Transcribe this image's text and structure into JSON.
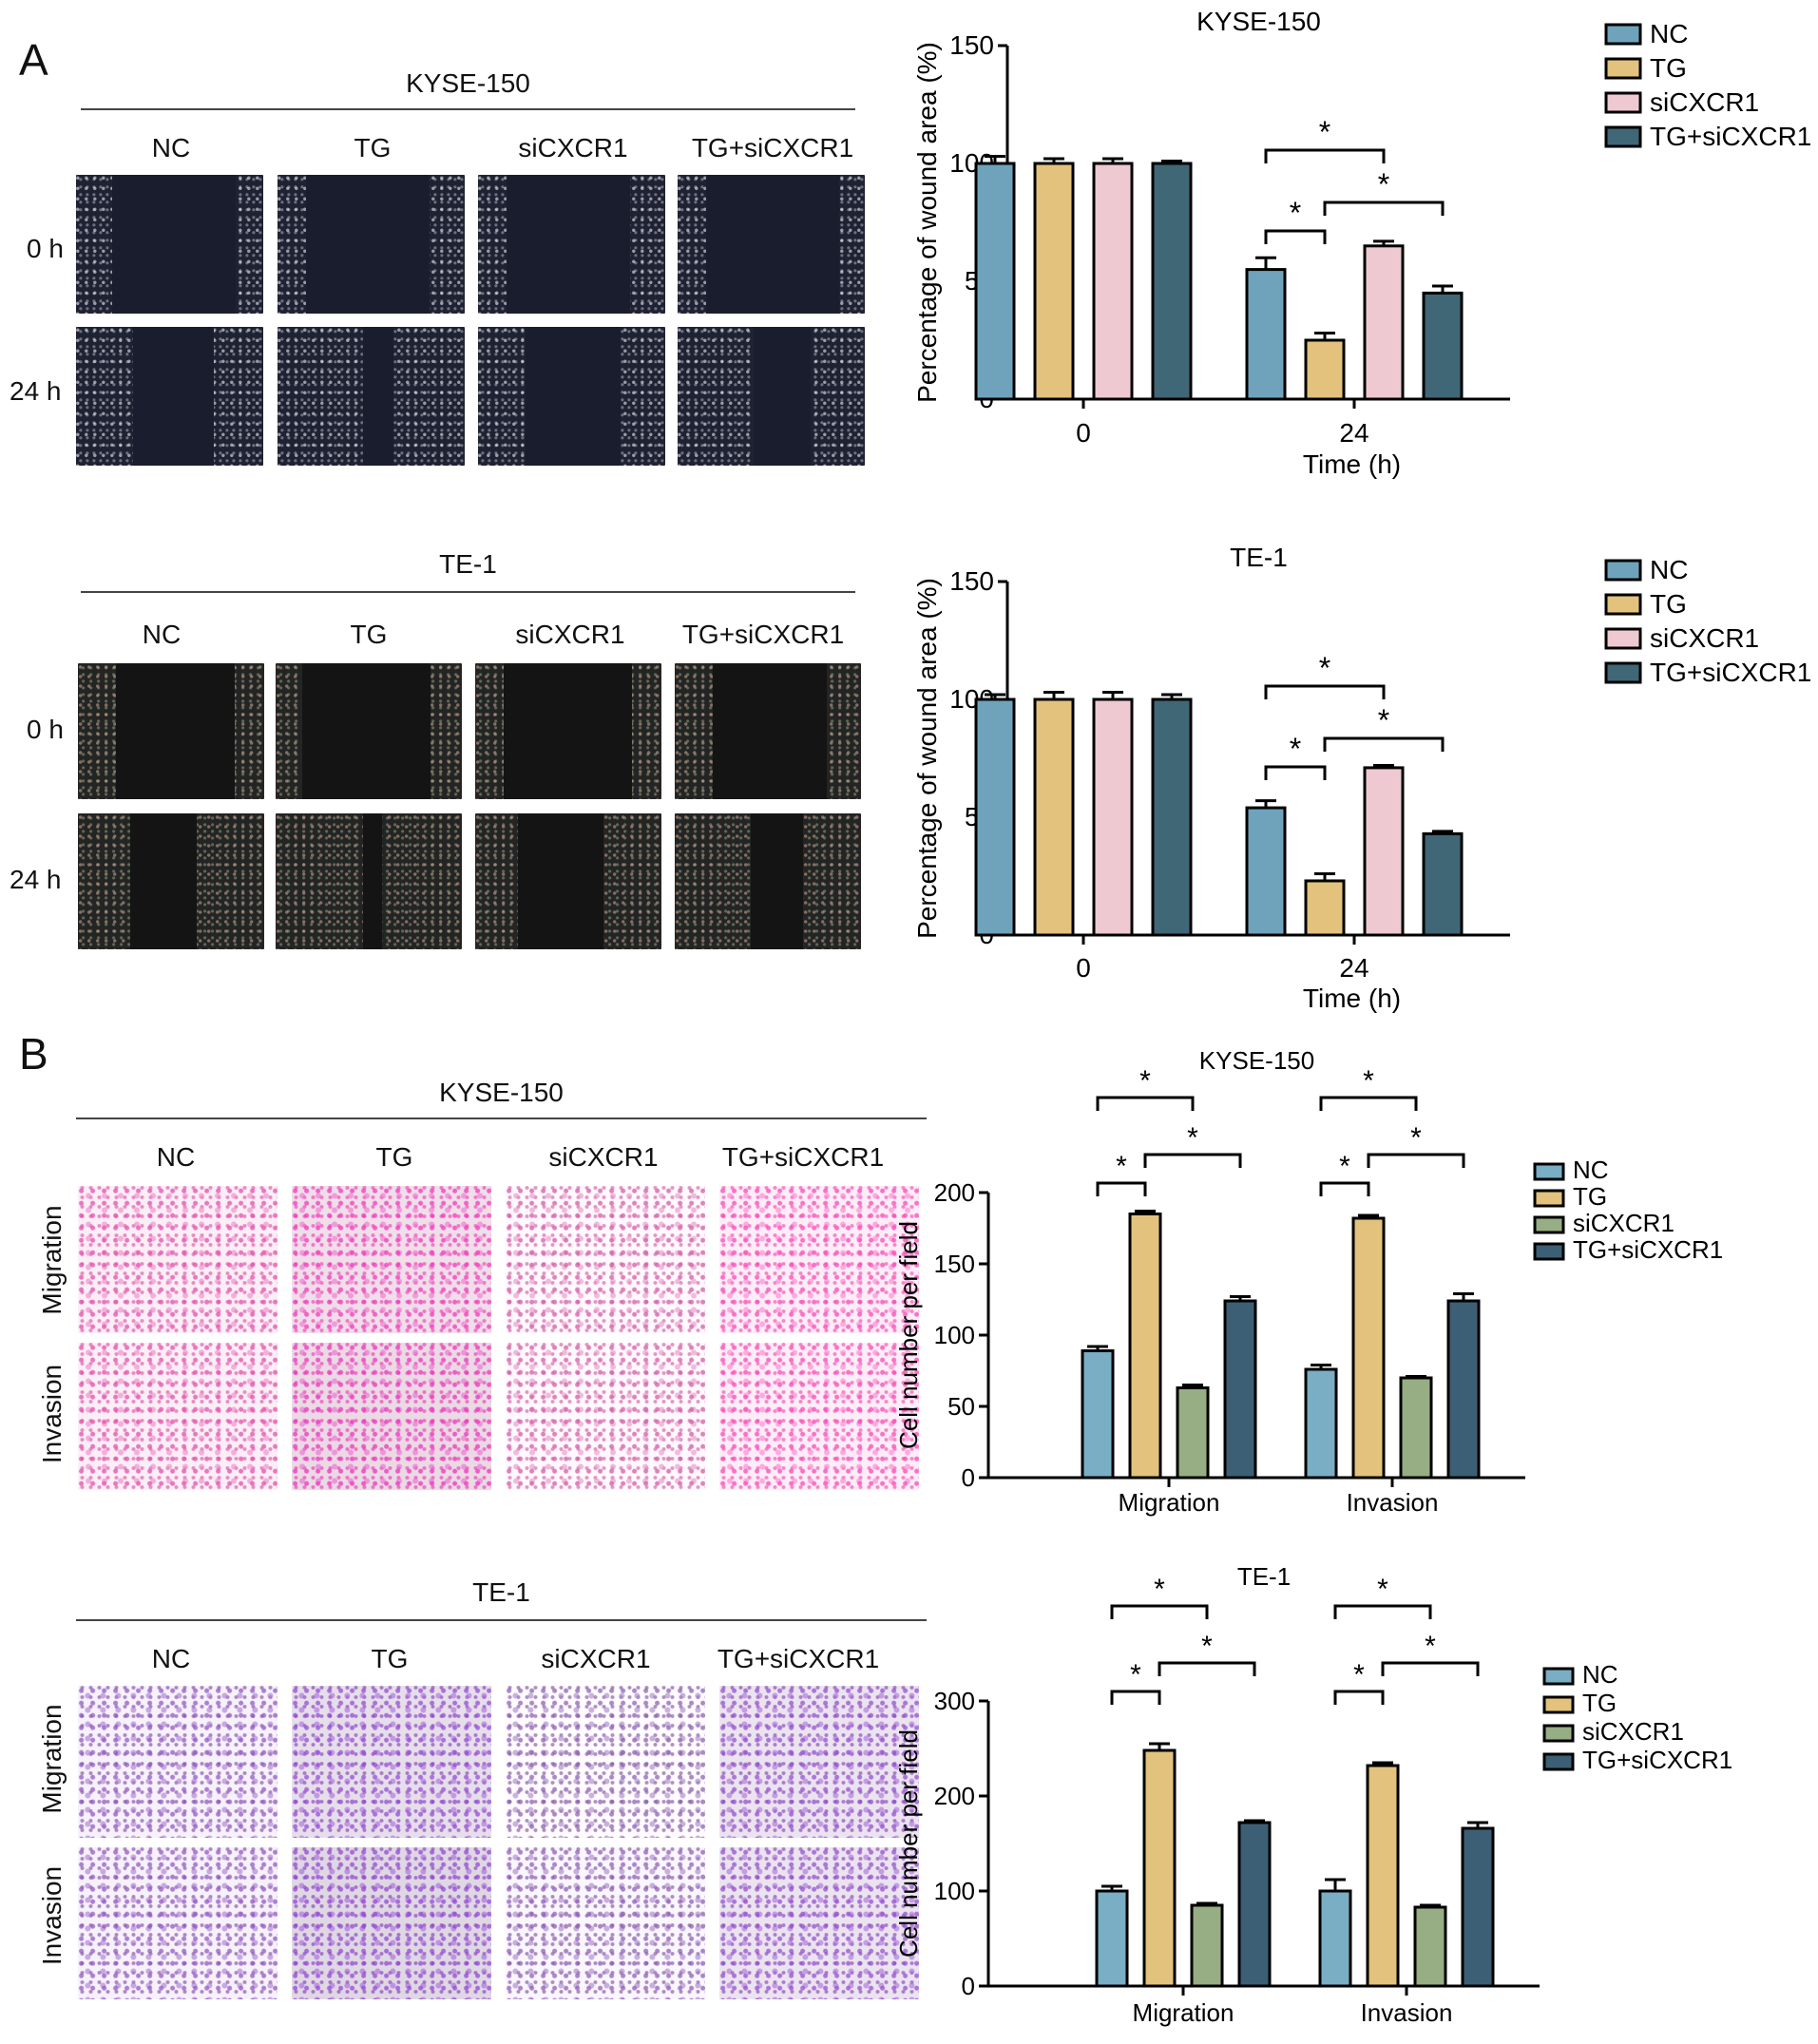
{
  "panels": {
    "a": {
      "letter": "A",
      "blocks": [
        {
          "title": "KYSE-150",
          "columns": [
            "NC",
            "TG",
            "siCXCR1",
            "TG+siCXCR1"
          ],
          "rows": [
            "0 h",
            "24 h"
          ]
        },
        {
          "title": "TE-1",
          "columns": [
            "NC",
            "TG",
            "siCXCR1",
            "TG+siCXCR1"
          ],
          "rows": [
            "0 h",
            "24 h"
          ]
        }
      ]
    },
    "b": {
      "letter": "B",
      "blocks": [
        {
          "title": "KYSE-150",
          "columns": [
            "NC",
            "TG",
            "siCXCR1",
            "TG+siCXCR1"
          ],
          "rows": [
            "Migration",
            "Invasion"
          ]
        },
        {
          "title": "TE-1",
          "columns": [
            "NC",
            "TG",
            "siCXCR1",
            "TG+siCXCR1"
          ],
          "rows": [
            "Migration",
            "Invasion"
          ]
        }
      ]
    }
  },
  "colors": {
    "a_series": [
      "#6fa3bc",
      "#e2c27d",
      "#efc9d1",
      "#3f6776"
    ],
    "b_series": [
      "#79aec4",
      "#e2c27d",
      "#97ad84",
      "#3c5f75"
    ]
  },
  "significance_marker": "*",
  "chart_data": [
    {
      "type": "bar",
      "title": "KYSE-150",
      "xlabel": "Time (h)",
      "ylabel": "Percentage of wound area (%)",
      "categories": [
        "0",
        "24"
      ],
      "ylim": [
        0,
        150
      ],
      "yticks": [
        0,
        50,
        100,
        150
      ],
      "series": [
        {
          "name": "NC",
          "values": [
            100,
            55
          ],
          "errors": [
            3,
            5
          ]
        },
        {
          "name": "TG",
          "values": [
            100,
            25
          ],
          "errors": [
            2,
            3
          ]
        },
        {
          "name": "siCXCR1",
          "values": [
            100,
            65
          ],
          "errors": [
            2,
            2
          ]
        },
        {
          "name": "TG+siCXCR1",
          "values": [
            100,
            45
          ],
          "errors": [
            1,
            3
          ]
        }
      ],
      "legend": "right",
      "significance": [
        {
          "group": "24",
          "from": "NC",
          "to": "siCXCR1",
          "label": "*"
        },
        {
          "group": "24",
          "from": "NC",
          "to": "TG",
          "label": "*"
        },
        {
          "group": "24",
          "from": "TG",
          "to": "TG+siCXCR1",
          "label": "*"
        }
      ]
    },
    {
      "type": "bar",
      "title": "TE-1",
      "xlabel": "Time (h)",
      "ylabel": "Percentage of wound area (%)",
      "categories": [
        "0",
        "24"
      ],
      "ylim": [
        0,
        150
      ],
      "yticks": [
        0,
        50,
        100,
        150
      ],
      "series": [
        {
          "name": "NC",
          "values": [
            100,
            54
          ],
          "errors": [
            2,
            3
          ]
        },
        {
          "name": "TG",
          "values": [
            100,
            23
          ],
          "errors": [
            3,
            3
          ]
        },
        {
          "name": "siCXCR1",
          "values": [
            100,
            71
          ],
          "errors": [
            3,
            1
          ]
        },
        {
          "name": "TG+siCXCR1",
          "values": [
            100,
            43
          ],
          "errors": [
            2,
            1
          ]
        }
      ],
      "legend": "right",
      "significance": [
        {
          "group": "24",
          "from": "NC",
          "to": "siCXCR1",
          "label": "*"
        },
        {
          "group": "24",
          "from": "NC",
          "to": "TG",
          "label": "*"
        },
        {
          "group": "24",
          "from": "TG",
          "to": "TG+siCXCR1",
          "label": "*"
        }
      ]
    },
    {
      "type": "bar",
      "title": "KYSE-150",
      "xlabel": "",
      "ylabel": "Cell number per field",
      "categories": [
        "Migration",
        "Invasion"
      ],
      "ylim": [
        0,
        200
      ],
      "yticks": [
        0,
        50,
        100,
        150,
        200
      ],
      "series": [
        {
          "name": "NC",
          "values": [
            89,
            76
          ],
          "errors": [
            3,
            3
          ]
        },
        {
          "name": "TG",
          "values": [
            185,
            182
          ],
          "errors": [
            2,
            2
          ]
        },
        {
          "name": "siCXCR1",
          "values": [
            63,
            70
          ],
          "errors": [
            2,
            1
          ]
        },
        {
          "name": "TG+siCXCR1",
          "values": [
            124,
            124
          ],
          "errors": [
            3,
            5
          ]
        }
      ],
      "legend": "right",
      "significance": [
        {
          "group": "Migration",
          "from": "NC",
          "to": "siCXCR1",
          "label": "*"
        },
        {
          "group": "Migration",
          "from": "NC",
          "to": "TG",
          "label": "*"
        },
        {
          "group": "Migration",
          "from": "TG",
          "to": "TG+siCXCR1",
          "label": "*"
        },
        {
          "group": "Invasion",
          "from": "NC",
          "to": "siCXCR1",
          "label": "*"
        },
        {
          "group": "Invasion",
          "from": "NC",
          "to": "TG",
          "label": "*"
        },
        {
          "group": "Invasion",
          "from": "TG",
          "to": "TG+siCXCR1",
          "label": "*"
        }
      ]
    },
    {
      "type": "bar",
      "title": "TE-1",
      "xlabel": "",
      "ylabel": "Cell number per field",
      "categories": [
        "Migration",
        "Invasion"
      ],
      "ylim": [
        0,
        300
      ],
      "yticks": [
        0,
        100,
        200,
        300
      ],
      "series": [
        {
          "name": "NC",
          "values": [
            100,
            100
          ],
          "errors": [
            5,
            12
          ]
        },
        {
          "name": "TG",
          "values": [
            248,
            232
          ],
          "errors": [
            7,
            3
          ]
        },
        {
          "name": "siCXCR1",
          "values": [
            85,
            83
          ],
          "errors": [
            2,
            2
          ]
        },
        {
          "name": "TG+siCXCR1",
          "values": [
            172,
            166
          ],
          "errors": [
            2,
            6
          ]
        }
      ],
      "legend": "right",
      "significance": [
        {
          "group": "Migration",
          "from": "NC",
          "to": "siCXCR1",
          "label": "*"
        },
        {
          "group": "Migration",
          "from": "NC",
          "to": "TG",
          "label": "*"
        },
        {
          "group": "Migration",
          "from": "TG",
          "to": "TG+siCXCR1",
          "label": "*"
        },
        {
          "group": "Invasion",
          "from": "NC",
          "to": "siCXCR1",
          "label": "*"
        },
        {
          "group": "Invasion",
          "from": "NC",
          "to": "TG",
          "label": "*"
        },
        {
          "group": "Invasion",
          "from": "TG",
          "to": "TG+siCXCR1",
          "label": "*"
        }
      ]
    }
  ]
}
